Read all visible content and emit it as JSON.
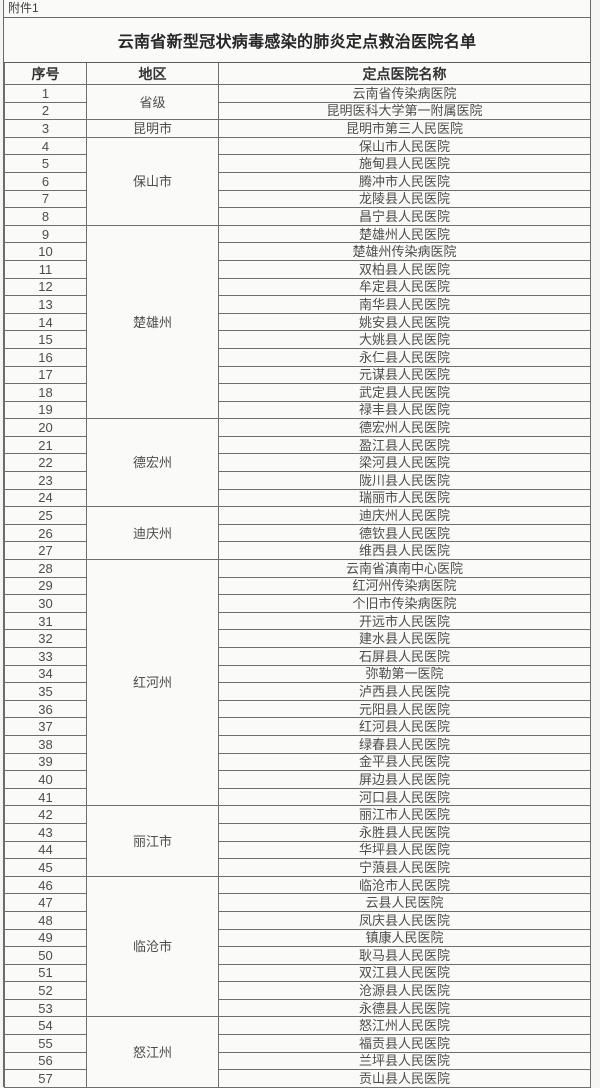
{
  "page": {
    "attachment_label": "附件1",
    "title": "云南省新型冠状病毒感染的肺炎定点救治医院名单"
  },
  "colors": {
    "border": "#6e6e6e",
    "region_divider": "#4b4b4b",
    "body_text": "#4d4d4d",
    "heading_text": "#262626",
    "sheet_background": "#fafaf9"
  },
  "table": {
    "columns": [
      "序号",
      "地区",
      "定点医院名称"
    ],
    "regions": [
      {
        "name": "省级",
        "hospitals": [
          "云南省传染病医院",
          "昆明医科大学第一附属医院"
        ]
      },
      {
        "name": "昆明市",
        "hospitals": [
          "昆明市第三人民医院"
        ]
      },
      {
        "name": "保山市",
        "hospitals": [
          "保山市人民医院",
          "施甸县人民医院",
          "腾冲市人民医院",
          "龙陵县人民医院",
          "昌宁县人民医院"
        ]
      },
      {
        "name": "楚雄州",
        "hospitals": [
          "楚雄州人民医院",
          "楚雄州传染病医院",
          "双柏县人民医院",
          "牟定县人民医院",
          "南华县人民医院",
          "姚安县人民医院",
          "大姚县人民医院",
          "永仁县人民医院",
          "元谋县人民医院",
          "武定县人民医院",
          "禄丰县人民医院"
        ]
      },
      {
        "name": "德宏州",
        "hospitals": [
          "德宏州人民医院",
          "盈江县人民医院",
          "梁河县人民医院",
          "陇川县人民医院",
          "瑞丽市人民医院"
        ]
      },
      {
        "name": "迪庆州",
        "hospitals": [
          "迪庆州人民医院",
          "德钦县人民医院",
          "维西县人民医院"
        ]
      },
      {
        "name": "红河州",
        "hospitals": [
          "云南省滇南中心医院",
          "红河州传染病医院",
          "个旧市传染病医院",
          "开远市人民医院",
          "建水县人民医院",
          "石屏县人民医院",
          "弥勒第一医院",
          "泸西县人民医院",
          "元阳县人民医院",
          "红河县人民医院",
          "绿春县人民医院",
          "金平县人民医院",
          "屏边县人民医院",
          "河口县人民医院"
        ]
      },
      {
        "name": "丽江市",
        "hospitals": [
          "丽江市人民医院",
          "永胜县人民医院",
          "华坪县人民医院",
          "宁蒗县人民医院"
        ]
      },
      {
        "name": "临沧市",
        "hospitals": [
          "临沧市人民医院",
          "云县人民医院",
          "凤庆县人民医院",
          "镇康人民医院",
          "耿马县人民医院",
          "双江县人民医院",
          "沧源县人民医院",
          "永德县人民医院"
        ]
      },
      {
        "name": "怒江州",
        "hospitals": [
          "怒江州人民医院",
          "福贡县人民医院",
          "兰坪县人民医院",
          "贡山县人民医院"
        ]
      }
    ]
  }
}
